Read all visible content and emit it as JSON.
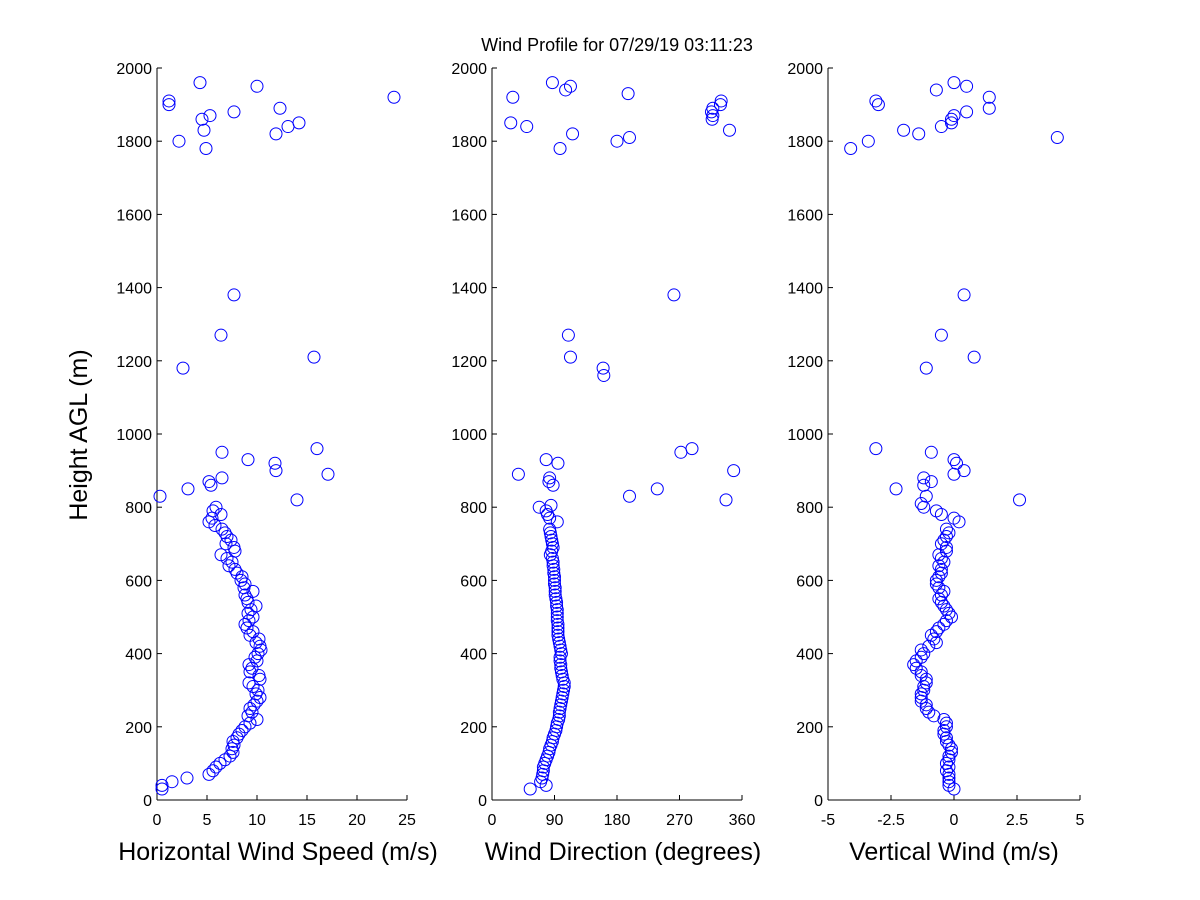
{
  "title": "Wind Profile for  07/29/19 03:11:23",
  "ylabel": "Height AGL (m)",
  "colors": {
    "marker": "#0000ff",
    "axis": "#000000",
    "background": "#ffffff"
  },
  "chart_data": [
    {
      "type": "scatter",
      "xlabel": "Horizontal Wind Speed (m/s)",
      "xlim": [
        0,
        25
      ],
      "ylim": [
        0,
        2000
      ],
      "xticks": [
        "0",
        "5",
        "10",
        "15",
        "20",
        "25"
      ],
      "yticks": [
        "0",
        "200",
        "400",
        "600",
        "800",
        "1000",
        "1200",
        "1400",
        "1600",
        "1800",
        "2000"
      ],
      "points": [
        [
          0.5,
          30
        ],
        [
          0.5,
          40
        ],
        [
          1.5,
          50
        ],
        [
          3.0,
          60
        ],
        [
          5.2,
          70
        ],
        [
          5.6,
          80
        ],
        [
          5.9,
          90
        ],
        [
          6.3,
          100
        ],
        [
          6.8,
          110
        ],
        [
          7.3,
          120
        ],
        [
          7.6,
          130
        ],
        [
          7.5,
          140
        ],
        [
          7.7,
          150
        ],
        [
          7.6,
          160
        ],
        [
          8.0,
          170
        ],
        [
          8.2,
          180
        ],
        [
          8.5,
          190
        ],
        [
          8.8,
          200
        ],
        [
          9.3,
          210
        ],
        [
          10.0,
          220
        ],
        [
          9.1,
          230
        ],
        [
          9.5,
          240
        ],
        [
          9.3,
          250
        ],
        [
          9.7,
          260
        ],
        [
          10.0,
          270
        ],
        [
          10.3,
          280
        ],
        [
          9.9,
          290
        ],
        [
          10.1,
          300
        ],
        [
          9.6,
          310
        ],
        [
          9.2,
          320
        ],
        [
          10.3,
          330
        ],
        [
          10.2,
          340
        ],
        [
          9.3,
          350
        ],
        [
          9.5,
          360
        ],
        [
          9.2,
          370
        ],
        [
          10.0,
          380
        ],
        [
          9.8,
          390
        ],
        [
          10.1,
          400
        ],
        [
          10.4,
          410
        ],
        [
          10.3,
          420
        ],
        [
          9.9,
          430
        ],
        [
          10.2,
          440
        ],
        [
          9.3,
          450
        ],
        [
          9.6,
          460
        ],
        [
          9.0,
          470
        ],
        [
          8.8,
          480
        ],
        [
          9.2,
          490
        ],
        [
          9.6,
          500
        ],
        [
          9.1,
          510
        ],
        [
          9.4,
          520
        ],
        [
          9.9,
          530
        ],
        [
          9.1,
          540
        ],
        [
          9.0,
          550
        ],
        [
          8.8,
          560
        ],
        [
          9.6,
          570
        ],
        [
          8.7,
          580
        ],
        [
          8.8,
          590
        ],
        [
          8.4,
          600
        ],
        [
          8.5,
          610
        ],
        [
          8.0,
          620
        ],
        [
          7.8,
          630
        ],
        [
          7.2,
          640
        ],
        [
          7.5,
          650
        ],
        [
          7.0,
          660
        ],
        [
          6.4,
          670
        ],
        [
          7.8,
          680
        ],
        [
          7.7,
          690
        ],
        [
          6.9,
          700
        ],
        [
          7.4,
          710
        ],
        [
          7.0,
          720
        ],
        [
          6.8,
          730
        ],
        [
          6.5,
          740
        ],
        [
          5.8,
          750
        ],
        [
          5.2,
          760
        ],
        [
          5.5,
          770
        ],
        [
          6.4,
          780
        ],
        [
          5.6,
          790
        ],
        [
          5.9,
          800
        ],
        [
          14.0,
          820
        ],
        [
          0.3,
          830
        ],
        [
          3.1,
          850
        ],
        [
          5.4,
          860
        ],
        [
          5.2,
          870
        ],
        [
          6.5,
          880
        ],
        [
          17.1,
          890
        ],
        [
          11.9,
          900
        ],
        [
          11.8,
          920
        ],
        [
          9.1,
          930
        ],
        [
          6.5,
          950
        ],
        [
          16.0,
          960
        ],
        [
          2.6,
          1180
        ],
        [
          15.7,
          1210
        ],
        [
          6.4,
          1270
        ],
        [
          7.7,
          1380
        ],
        [
          4.9,
          1780
        ],
        [
          2.2,
          1800
        ],
        [
          11.9,
          1820
        ],
        [
          4.7,
          1830
        ],
        [
          13.1,
          1840
        ],
        [
          14.2,
          1850
        ],
        [
          4.5,
          1860
        ],
        [
          5.3,
          1870
        ],
        [
          7.7,
          1880
        ],
        [
          12.3,
          1890
        ],
        [
          1.2,
          1900
        ],
        [
          1.2,
          1910
        ],
        [
          23.7,
          1920
        ],
        [
          10.0,
          1950
        ],
        [
          4.3,
          1960
        ]
      ]
    },
    {
      "type": "scatter",
      "xlabel": "Wind Direction (degrees)",
      "xlim": [
        0,
        360
      ],
      "ylim": [
        0,
        2000
      ],
      "xticks": [
        "0",
        "90",
        "180",
        "270",
        "360"
      ],
      "yticks": [
        "0",
        "200",
        "400",
        "600",
        "800",
        "1000",
        "1200",
        "1400",
        "1600",
        "1800",
        "2000"
      ],
      "points": [
        [
          55,
          30
        ],
        [
          78,
          40
        ],
        [
          70,
          50
        ],
        [
          72,
          60
        ],
        [
          73,
          70
        ],
        [
          74,
          80
        ],
        [
          74,
          90
        ],
        [
          76,
          100
        ],
        [
          78,
          110
        ],
        [
          80,
          120
        ],
        [
          82,
          130
        ],
        [
          83,
          140
        ],
        [
          85,
          150
        ],
        [
          87,
          160
        ],
        [
          88,
          170
        ],
        [
          90,
          180
        ],
        [
          92,
          190
        ],
        [
          93,
          200
        ],
        [
          94,
          210
        ],
        [
          96,
          220
        ],
        [
          97,
          230
        ],
        [
          97,
          240
        ],
        [
          98,
          250
        ],
        [
          99,
          260
        ],
        [
          100,
          270
        ],
        [
          101,
          280
        ],
        [
          102,
          290
        ],
        [
          103,
          300
        ],
        [
          104,
          310
        ],
        [
          104,
          320
        ],
        [
          102,
          330
        ],
        [
          101,
          340
        ],
        [
          100,
          350
        ],
        [
          99,
          360
        ],
        [
          99,
          370
        ],
        [
          98,
          380
        ],
        [
          98,
          390
        ],
        [
          100,
          400
        ],
        [
          99,
          410
        ],
        [
          98,
          420
        ],
        [
          97,
          430
        ],
        [
          96,
          440
        ],
        [
          95,
          450
        ],
        [
          95,
          460
        ],
        [
          95,
          470
        ],
        [
          95,
          480
        ],
        [
          94,
          490
        ],
        [
          94,
          500
        ],
        [
          94,
          510
        ],
        [
          94,
          520
        ],
        [
          93,
          530
        ],
        [
          93,
          540
        ],
        [
          92,
          550
        ],
        [
          91,
          560
        ],
        [
          91,
          570
        ],
        [
          91,
          580
        ],
        [
          90,
          590
        ],
        [
          90,
          600
        ],
        [
          90,
          610
        ],
        [
          89,
          620
        ],
        [
          89,
          630
        ],
        [
          88,
          640
        ],
        [
          88,
          650
        ],
        [
          87,
          660
        ],
        [
          84,
          670
        ],
        [
          86,
          680
        ],
        [
          88,
          690
        ],
        [
          87,
          700
        ],
        [
          86,
          710
        ],
        [
          85,
          720
        ],
        [
          84,
          730
        ],
        [
          83,
          740
        ],
        [
          94,
          760
        ],
        [
          83,
          770
        ],
        [
          80,
          780
        ],
        [
          78,
          790
        ],
        [
          68,
          800
        ],
        [
          85,
          805
        ],
        [
          337,
          820
        ],
        [
          198,
          830
        ],
        [
          238,
          850
        ],
        [
          88,
          860
        ],
        [
          82,
          870
        ],
        [
          83,
          880
        ],
        [
          38,
          890
        ],
        [
          348,
          900
        ],
        [
          95,
          920
        ],
        [
          78,
          930
        ],
        [
          272,
          950
        ],
        [
          288,
          960
        ],
        [
          161,
          1160
        ],
        [
          160,
          1180
        ],
        [
          113,
          1210
        ],
        [
          110,
          1270
        ],
        [
          262,
          1380
        ],
        [
          98,
          1780
        ],
        [
          180,
          1800
        ],
        [
          198,
          1810
        ],
        [
          116,
          1820
        ],
        [
          342,
          1830
        ],
        [
          27,
          1850
        ],
        [
          50,
          1840
        ],
        [
          30,
          1920
        ],
        [
          317,
          1860
        ],
        [
          318,
          1870
        ],
        [
          316,
          1880
        ],
        [
          318,
          1890
        ],
        [
          329,
          1900
        ],
        [
          330,
          1910
        ],
        [
          196,
          1930
        ],
        [
          106,
          1940
        ],
        [
          113,
          1950
        ],
        [
          87,
          1960
        ]
      ]
    },
    {
      "type": "scatter",
      "xlabel": "Vertical Wind (m/s)",
      "xlim": [
        -5,
        5
      ],
      "ylim": [
        0,
        2000
      ],
      "xticks": [
        "-5",
        "-2.5",
        "0",
        "2.5",
        "5"
      ],
      "yticks": [
        "0",
        "200",
        "400",
        "600",
        "800",
        "1000",
        "1200",
        "1400",
        "1600",
        "1800",
        "2000"
      ],
      "points": [
        [
          0.0,
          30
        ],
        [
          -0.2,
          40
        ],
        [
          -0.2,
          50
        ],
        [
          -0.2,
          60
        ],
        [
          -0.2,
          70
        ],
        [
          -0.3,
          80
        ],
        [
          -0.2,
          90
        ],
        [
          -0.3,
          100
        ],
        [
          -0.2,
          110
        ],
        [
          -0.2,
          120
        ],
        [
          -0.1,
          130
        ],
        [
          -0.1,
          140
        ],
        [
          -0.2,
          150
        ],
        [
          -0.3,
          160
        ],
        [
          -0.3,
          170
        ],
        [
          -0.4,
          180
        ],
        [
          -0.4,
          190
        ],
        [
          -0.3,
          200
        ],
        [
          -0.3,
          210
        ],
        [
          -0.4,
          220
        ],
        [
          -0.8,
          230
        ],
        [
          -1.0,
          240
        ],
        [
          -1.1,
          250
        ],
        [
          -1.1,
          260
        ],
        [
          -1.3,
          270
        ],
        [
          -1.3,
          280
        ],
        [
          -1.3,
          290
        ],
        [
          -1.2,
          300
        ],
        [
          -1.2,
          310
        ],
        [
          -1.1,
          320
        ],
        [
          -1.1,
          330
        ],
        [
          -1.3,
          340
        ],
        [
          -1.3,
          350
        ],
        [
          -1.5,
          360
        ],
        [
          -1.6,
          370
        ],
        [
          -1.5,
          380
        ],
        [
          -1.3,
          390
        ],
        [
          -1.2,
          400
        ],
        [
          -1.3,
          410
        ],
        [
          -1.0,
          420
        ],
        [
          -0.7,
          430
        ],
        [
          -0.8,
          440
        ],
        [
          -0.9,
          450
        ],
        [
          -0.7,
          460
        ],
        [
          -0.6,
          470
        ],
        [
          -0.4,
          480
        ],
        [
          -0.3,
          490
        ],
        [
          -0.1,
          500
        ],
        [
          -0.2,
          510
        ],
        [
          -0.3,
          520
        ],
        [
          -0.4,
          530
        ],
        [
          -0.5,
          540
        ],
        [
          -0.6,
          550
        ],
        [
          -0.5,
          560
        ],
        [
          -0.4,
          570
        ],
        [
          -0.6,
          580
        ],
        [
          -0.7,
          590
        ],
        [
          -0.7,
          600
        ],
        [
          -0.6,
          610
        ],
        [
          -0.5,
          620
        ],
        [
          -0.5,
          630
        ],
        [
          -0.6,
          640
        ],
        [
          -0.4,
          650
        ],
        [
          -0.5,
          660
        ],
        [
          -0.6,
          670
        ],
        [
          -0.3,
          680
        ],
        [
          -0.3,
          690
        ],
        [
          -0.5,
          700
        ],
        [
          -0.4,
          710
        ],
        [
          -0.3,
          720
        ],
        [
          -0.2,
          730
        ],
        [
          -0.3,
          740
        ],
        [
          0.2,
          760
        ],
        [
          0.0,
          770
        ],
        [
          -0.5,
          780
        ],
        [
          -0.7,
          790
        ],
        [
          -1.2,
          800
        ],
        [
          -1.3,
          810
        ],
        [
          2.6,
          820
        ],
        [
          -1.1,
          830
        ],
        [
          -2.3,
          850
        ],
        [
          -1.2,
          860
        ],
        [
          -0.9,
          870
        ],
        [
          -1.2,
          880
        ],
        [
          0.0,
          890
        ],
        [
          0.4,
          900
        ],
        [
          0.1,
          920
        ],
        [
          0.0,
          930
        ],
        [
          -0.9,
          950
        ],
        [
          -3.1,
          960
        ],
        [
          -1.1,
          1180
        ],
        [
          0.8,
          1210
        ],
        [
          -0.5,
          1270
        ],
        [
          0.4,
          1380
        ],
        [
          -4.1,
          1780
        ],
        [
          -3.4,
          1800
        ],
        [
          4.1,
          1810
        ],
        [
          -1.4,
          1820
        ],
        [
          -2.0,
          1830
        ],
        [
          -0.5,
          1840
        ],
        [
          -0.1,
          1850
        ],
        [
          -0.1,
          1860
        ],
        [
          0.0,
          1870
        ],
        [
          0.5,
          1880
        ],
        [
          1.4,
          1890
        ],
        [
          -3.0,
          1900
        ],
        [
          -3.1,
          1910
        ],
        [
          1.4,
          1920
        ],
        [
          -0.7,
          1940
        ],
        [
          0.5,
          1950
        ],
        [
          0.0,
          1960
        ]
      ]
    }
  ]
}
